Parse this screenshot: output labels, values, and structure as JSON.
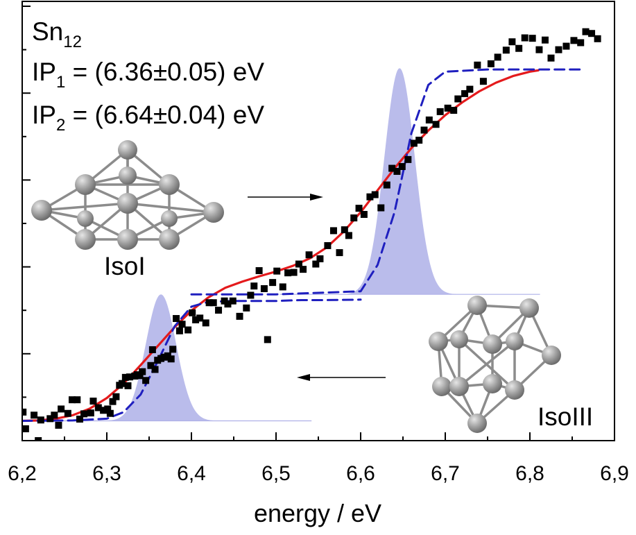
{
  "chart_data": {
    "type": "scatter",
    "title": "",
    "xlabel": "energy / eV",
    "ylabel": "",
    "xlim": [
      6.2,
      6.9
    ],
    "ylim": [
      0,
      1
    ],
    "x_ticks": [
      "6,2",
      "6,3",
      "6,4",
      "6,5",
      "6,6",
      "6,7",
      "6,8",
      "6,9"
    ],
    "annotations": {
      "species": {
        "base": "Sn",
        "sub": "12"
      },
      "ip1": {
        "pre": "IP",
        "sub": "1",
        "post": " = (6.36±0.05) eV"
      },
      "ip2": {
        "pre": "IP",
        "sub": "2",
        "post": " = (6.64±0.04) eV"
      },
      "isomer_a": "IsoI",
      "isomer_b": "IsoIII"
    },
    "series": [
      {
        "type": "scatter",
        "color": "#000000",
        "points": [
          [
            6.201,
            0.065
          ],
          [
            6.204,
            0.027
          ],
          [
            6.214,
            0.058
          ],
          [
            6.219,
            0.0
          ],
          [
            6.222,
            0.047
          ],
          [
            6.233,
            0.05
          ],
          [
            6.238,
            0.058
          ],
          [
            6.243,
            0.035
          ],
          [
            6.246,
            0.072
          ],
          [
            6.254,
            0.062
          ],
          [
            6.259,
            0.093
          ],
          [
            6.265,
            0.093
          ],
          [
            6.268,
            0.049
          ],
          [
            6.273,
            0.061
          ],
          [
            6.281,
            0.063
          ],
          [
            6.284,
            0.09
          ],
          [
            6.29,
            0.075
          ],
          [
            6.296,
            0.069
          ],
          [
            6.301,
            0.072
          ],
          [
            6.304,
            0.062
          ],
          [
            6.307,
            0.089
          ],
          [
            6.311,
            0.1
          ],
          [
            6.315,
            0.126
          ],
          [
            6.318,
            0.13
          ],
          [
            6.322,
            0.144
          ],
          [
            6.325,
            0.125
          ],
          [
            6.327,
            0.145
          ],
          [
            6.333,
            0.147
          ],
          [
            6.336,
            0.15
          ],
          [
            6.339,
            0.148
          ],
          [
            6.342,
            0.157
          ],
          [
            6.346,
            0.137
          ],
          [
            6.352,
            0.171
          ],
          [
            6.354,
            0.207
          ],
          [
            6.357,
            0.162
          ],
          [
            6.36,
            0.183
          ],
          [
            6.364,
            0.187
          ],
          [
            6.368,
            0.19
          ],
          [
            6.372,
            0.193
          ],
          [
            6.376,
            0.186
          ],
          [
            6.378,
            0.208
          ],
          [
            6.382,
            0.278
          ],
          [
            6.386,
            0.25
          ],
          [
            6.389,
            0.265
          ],
          [
            6.396,
            0.252
          ],
          [
            6.401,
            0.291
          ],
          [
            6.405,
            0.275
          ],
          [
            6.41,
            0.279
          ],
          [
            6.417,
            0.268
          ],
          [
            6.421,
            0.314
          ],
          [
            6.426,
            0.314
          ],
          [
            6.432,
            0.297
          ],
          [
            6.439,
            0.318
          ],
          [
            6.443,
            0.311
          ],
          [
            6.449,
            0.318
          ],
          [
            6.457,
            0.283
          ],
          [
            6.465,
            0.302
          ],
          [
            6.47,
            0.331
          ],
          [
            6.474,
            0.352
          ],
          [
            6.48,
            0.387
          ],
          [
            6.486,
            0.346
          ],
          [
            6.49,
            0.23
          ],
          [
            6.496,
            0.36
          ],
          [
            6.501,
            0.386
          ],
          [
            6.508,
            0.35
          ],
          [
            6.514,
            0.382
          ],
          [
            6.521,
            0.383
          ],
          [
            6.527,
            0.402
          ],
          [
            6.532,
            0.39
          ],
          [
            6.539,
            0.423
          ],
          [
            6.547,
            0.402
          ],
          [
            6.552,
            0.414
          ],
          [
            6.561,
            0.444
          ],
          [
            6.568,
            0.478
          ],
          [
            6.575,
            0.428
          ],
          [
            6.581,
            0.48
          ],
          [
            6.586,
            0.467
          ],
          [
            6.592,
            0.507
          ],
          [
            6.598,
            0.529
          ],
          [
            6.604,
            0.515
          ],
          [
            6.611,
            0.555
          ],
          [
            6.617,
            0.56
          ],
          [
            6.624,
            0.53
          ],
          [
            6.631,
            0.582
          ],
          [
            6.637,
            0.62
          ],
          [
            6.643,
            0.613
          ],
          [
            6.649,
            0.624
          ],
          [
            6.656,
            0.64
          ],
          [
            6.663,
            0.677
          ],
          [
            6.669,
            0.684
          ],
          [
            6.675,
            0.707
          ],
          [
            6.681,
            0.73
          ],
          [
            6.689,
            0.72
          ],
          [
            6.694,
            0.749
          ],
          [
            6.703,
            0.757
          ],
          [
            6.71,
            0.752
          ],
          [
            6.715,
            0.778
          ],
          [
            6.723,
            0.79
          ],
          [
            6.729,
            0.8
          ],
          [
            6.738,
            0.855
          ],
          [
            6.745,
            0.818
          ],
          [
            6.754,
            0.858
          ],
          [
            6.762,
            0.873
          ],
          [
            6.772,
            0.889
          ],
          [
            6.779,
            0.908
          ],
          [
            6.787,
            0.893
          ],
          [
            6.794,
            0.917
          ],
          [
            6.803,
            0.916
          ],
          [
            6.811,
            0.89
          ],
          [
            6.818,
            0.912
          ],
          [
            6.825,
            0.871
          ],
          [
            6.834,
            0.89
          ],
          [
            6.843,
            0.898
          ],
          [
            6.852,
            0.911
          ],
          [
            6.86,
            0.906
          ],
          [
            6.866,
            0.931
          ],
          [
            6.873,
            0.927
          ],
          [
            6.88,
            0.915
          ]
        ]
      },
      {
        "type": "line",
        "color": "#e41a1c",
        "points": [
          [
            6.2,
            0.045
          ],
          [
            6.22,
            0.046
          ],
          [
            6.24,
            0.05
          ],
          [
            6.26,
            0.058
          ],
          [
            6.28,
            0.073
          ],
          [
            6.3,
            0.097
          ],
          [
            6.32,
            0.13
          ],
          [
            6.34,
            0.172
          ],
          [
            6.36,
            0.215
          ],
          [
            6.38,
            0.258
          ],
          [
            6.4,
            0.296
          ],
          [
            6.42,
            0.326
          ],
          [
            6.44,
            0.348
          ],
          [
            6.46,
            0.362
          ],
          [
            6.48,
            0.374
          ],
          [
            6.5,
            0.385
          ],
          [
            6.52,
            0.398
          ],
          [
            6.54,
            0.415
          ],
          [
            6.56,
            0.44
          ],
          [
            6.58,
            0.476
          ],
          [
            6.6,
            0.52
          ],
          [
            6.62,
            0.57
          ],
          [
            6.64,
            0.62
          ],
          [
            6.66,
            0.666
          ],
          [
            6.68,
            0.706
          ],
          [
            6.7,
            0.741
          ],
          [
            6.72,
            0.77
          ],
          [
            6.74,
            0.795
          ],
          [
            6.76,
            0.815
          ],
          [
            6.78,
            0.83
          ],
          [
            6.8,
            0.84
          ],
          [
            6.81,
            0.843
          ]
        ]
      },
      {
        "type": "line",
        "color": "#1f1fbf",
        "style": "dashed",
        "points": [
          [
            6.2,
            0.045
          ],
          [
            6.26,
            0.046
          ],
          [
            6.3,
            0.05
          ],
          [
            6.32,
            0.065
          ],
          [
            6.34,
            0.105
          ],
          [
            6.36,
            0.18
          ],
          [
            6.38,
            0.26
          ],
          [
            6.4,
            0.305
          ],
          [
            6.42,
            0.316
          ],
          [
            6.45,
            0.318
          ],
          [
            6.5,
            0.318
          ],
          [
            6.53,
            0.32
          ],
          [
            6.56,
            0.32
          ],
          [
            6.6,
            0.321
          ]
        ]
      },
      {
        "type": "line",
        "color": "#1f1fbf",
        "style": "dashed",
        "points": [
          [
            6.4,
            0.333
          ],
          [
            6.5,
            0.333
          ],
          [
            6.6,
            0.34
          ],
          [
            6.62,
            0.4
          ],
          [
            6.64,
            0.52
          ],
          [
            6.66,
            0.7
          ],
          [
            6.68,
            0.81
          ],
          [
            6.7,
            0.84
          ],
          [
            6.75,
            0.845
          ],
          [
            6.8,
            0.845
          ],
          [
            6.86,
            0.845
          ]
        ]
      },
      {
        "type": "area",
        "color": "#aeb0e8",
        "baseline": 0.045,
        "center": 6.364,
        "sigma": 0.018,
        "peak": 0.333,
        "x_range": [
          6.28,
          6.46
        ]
      },
      {
        "type": "area",
        "color": "#aeb0e8",
        "baseline": 0.333,
        "center": 6.646,
        "sigma": 0.018,
        "peak": 0.848,
        "x_range": [
          6.57,
          6.73
        ]
      }
    ]
  },
  "structures": {
    "isomer_a": {
      "icon": "sn12-isoi-cluster-icon"
    },
    "isomer_b": {
      "icon": "sn12-isoiii-cluster-icon"
    }
  },
  "colors": {
    "fit": "#e41a1c",
    "simulation": "#1f1fbf",
    "gaussian": "#aeb0e8",
    "atom": "#9a9a9a"
  }
}
